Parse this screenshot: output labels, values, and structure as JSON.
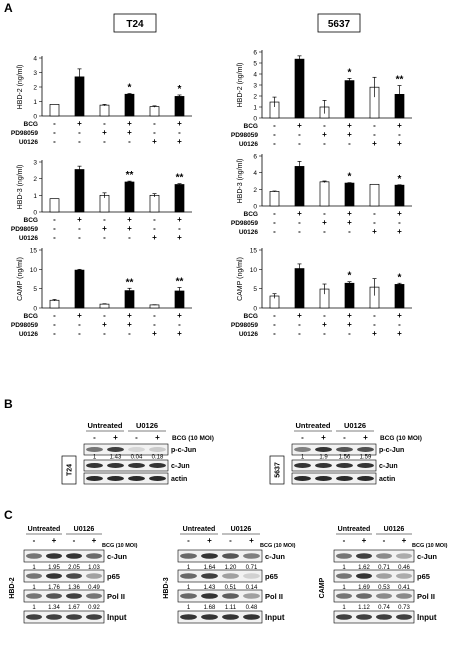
{
  "panel_labels": {
    "A": "A",
    "B": "B",
    "C": "C"
  },
  "cell_lines": {
    "t24": "T24",
    "c5637": "5637"
  },
  "row_labels": {
    "bcg": "BCG",
    "pd": "PD98059",
    "u0126": "U0126"
  },
  "treatment_matrix": {
    "bcg": [
      "-",
      "+",
      "-",
      "+",
      "-",
      "+"
    ],
    "pd": [
      "-",
      "-",
      "+",
      "+",
      "-",
      "-"
    ],
    "u0126": [
      "-",
      "-",
      "-",
      "-",
      "+",
      "+"
    ]
  },
  "chart_data": [
    {
      "type": "bar",
      "cell_line": "T24",
      "ylabel": "HBD-2 (ng/ml)",
      "ylim": [
        0,
        4
      ],
      "yticks": [
        0,
        1,
        2,
        3,
        4
      ],
      "values": [
        0.8,
        2.7,
        0.75,
        1.5,
        0.65,
        1.35
      ],
      "errors": [
        0.0,
        0.55,
        0.05,
        0.05,
        0.05,
        0.1
      ],
      "fills": [
        "white",
        "black",
        "white",
        "black",
        "white",
        "black"
      ],
      "sig": [
        "",
        "",
        "",
        "*",
        "",
        "*"
      ]
    },
    {
      "type": "bar",
      "cell_line": "5637",
      "ylabel": "HBD-2 (ng/ml)",
      "ylim": [
        0,
        6
      ],
      "yticks": [
        0,
        1,
        2,
        3,
        4,
        5,
        6
      ],
      "values": [
        1.45,
        5.35,
        1.0,
        3.4,
        2.8,
        2.15
      ],
      "errors": [
        0.45,
        0.3,
        0.6,
        0.2,
        0.9,
        0.8
      ],
      "fills": [
        "white",
        "black",
        "white",
        "black",
        "white",
        "black"
      ],
      "sig": [
        "",
        "",
        "",
        "*",
        "",
        "**"
      ]
    },
    {
      "type": "bar",
      "cell_line": "T24",
      "ylabel": "HBD-3 (ng/ml)",
      "ylim": [
        0,
        3
      ],
      "yticks": [
        0,
        1,
        2,
        3
      ],
      "values": [
        0.8,
        2.55,
        1.0,
        1.8,
        1.0,
        1.65
      ],
      "errors": [
        0.0,
        0.2,
        0.15,
        0.05,
        0.1,
        0.05
      ],
      "fills": [
        "white",
        "black",
        "white",
        "black",
        "white",
        "black"
      ],
      "sig": [
        "",
        "",
        "",
        "**",
        "",
        "**"
      ]
    },
    {
      "type": "bar",
      "cell_line": "5637",
      "ylabel": "HBD-3 (ng/ml)",
      "ylim": [
        0,
        6
      ],
      "yticks": [
        0,
        2,
        4,
        6
      ],
      "values": [
        1.75,
        4.75,
        2.9,
        2.75,
        2.6,
        2.5
      ],
      "errors": [
        0.05,
        0.6,
        0.1,
        0.05,
        0.0,
        0.05
      ],
      "fills": [
        "white",
        "black",
        "white",
        "black",
        "white",
        "black"
      ],
      "sig": [
        "",
        "",
        "",
        "*",
        "",
        "*"
      ]
    },
    {
      "type": "bar",
      "cell_line": "T24",
      "ylabel": "CAMP (ng/ml)",
      "ylim": [
        0,
        15
      ],
      "yticks": [
        0,
        5,
        10,
        15
      ],
      "values": [
        2.0,
        9.8,
        1.0,
        4.5,
        0.8,
        4.4
      ],
      "errors": [
        0.2,
        0.2,
        0.1,
        0.6,
        0.05,
        0.9
      ],
      "fills": [
        "white",
        "black",
        "white",
        "black",
        "white",
        "black"
      ],
      "sig": [
        "",
        "",
        "",
        "**",
        "",
        "**"
      ]
    },
    {
      "type": "bar",
      "cell_line": "5637",
      "ylabel": "CAMP (ng/ml)",
      "ylim": [
        0,
        15
      ],
      "yticks": [
        0,
        5,
        10,
        15
      ],
      "values": [
        3.1,
        10.2,
        4.9,
        6.4,
        5.4,
        6.1
      ],
      "errors": [
        0.6,
        1.2,
        1.3,
        0.4,
        2.2,
        0.3
      ],
      "fills": [
        "white",
        "black",
        "white",
        "black",
        "white",
        "black"
      ],
      "sig": [
        "",
        "",
        "",
        "*",
        "",
        "*"
      ]
    }
  ],
  "western_b": {
    "header_groups": [
      "Untreated",
      "U0126"
    ],
    "signs": [
      "-",
      "+",
      "-",
      "+"
    ],
    "treatment": "BCG (10 MOI)",
    "blots": [
      {
        "cell_line": "T24",
        "numbers": [
          "1",
          "1.43",
          "0.04",
          "0.18"
        ],
        "bands": [
          "p-c-Jun",
          "c-Jun",
          "actin"
        ],
        "intensity": [
          [
            0.55,
            0.8,
            0.1,
            0.15
          ],
          [
            0.85,
            0.85,
            0.85,
            0.85
          ],
          [
            0.9,
            0.9,
            0.9,
            0.9
          ]
        ]
      },
      {
        "cell_line": "5637",
        "numbers": [
          "1",
          "1.9",
          "1.56",
          "1.59"
        ],
        "bands": [
          "p-c-Jun",
          "c-Jun",
          "actin"
        ],
        "intensity": [
          [
            0.5,
            0.85,
            0.7,
            0.72
          ],
          [
            0.85,
            0.85,
            0.85,
            0.85
          ],
          [
            0.9,
            0.9,
            0.9,
            0.9
          ]
        ]
      }
    ]
  },
  "chip_c": {
    "header_groups": [
      "Untreated",
      "U0126"
    ],
    "signs": [
      "-",
      "+",
      "-",
      "+"
    ],
    "treatment": "BCG (10 MOI)",
    "panels": [
      {
        "gene": "HBD-2",
        "bands": [
          {
            "label": "c-Jun",
            "numbers": [
              "1",
              "1.95",
              "2.05",
              "1.03"
            ],
            "intensity": [
              0.55,
              0.85,
              0.85,
              0.6
            ]
          },
          {
            "label": "p65",
            "numbers": [
              "1",
              "1.76",
              "1.36",
              "0.49"
            ],
            "intensity": [
              0.55,
              0.85,
              0.75,
              0.35
            ]
          },
          {
            "label": "Pol II",
            "numbers": [
              "1",
              "1.34",
              "1.67",
              "0.92"
            ],
            "intensity": [
              0.55,
              0.7,
              0.8,
              0.55
            ]
          },
          {
            "label": "Input",
            "numbers": [],
            "intensity": [
              0.8,
              0.8,
              0.8,
              0.8
            ]
          }
        ]
      },
      {
        "gene": "HBD-3",
        "bands": [
          {
            "label": "c-Jun",
            "numbers": [
              "1",
              "1.64",
              "1.20",
              "0.71"
            ],
            "intensity": [
              0.6,
              0.85,
              0.7,
              0.5
            ]
          },
          {
            "label": "p65",
            "numbers": [
              "1",
              "1.43",
              "0.51",
              "0.14"
            ],
            "intensity": [
              0.6,
              0.8,
              0.35,
              0.12
            ]
          },
          {
            "label": "Pol II",
            "numbers": [
              "1",
              "1.68",
              "1.11",
              "0.48"
            ],
            "intensity": [
              0.6,
              0.85,
              0.65,
              0.35
            ]
          },
          {
            "label": "Input",
            "numbers": [],
            "intensity": [
              0.85,
              0.85,
              0.85,
              0.85
            ]
          }
        ]
      },
      {
        "gene": "CAMP",
        "bands": [
          {
            "label": "c-Jun",
            "numbers": [
              "1",
              "1.62",
              "0.71",
              "0.46"
            ],
            "intensity": [
              0.55,
              0.8,
              0.45,
              0.3
            ]
          },
          {
            "label": "p65",
            "numbers": [
              "1",
              "1.69",
              "0.53",
              "0.41"
            ],
            "intensity": [
              0.55,
              0.85,
              0.35,
              0.3
            ]
          },
          {
            "label": "Pol II",
            "numbers": [
              "1",
              "1.12",
              "0.74",
              "0.73"
            ],
            "intensity": [
              0.55,
              0.6,
              0.45,
              0.45
            ]
          },
          {
            "label": "Input",
            "numbers": [],
            "intensity": [
              0.8,
              0.8,
              0.8,
              0.8
            ]
          }
        ]
      }
    ]
  }
}
